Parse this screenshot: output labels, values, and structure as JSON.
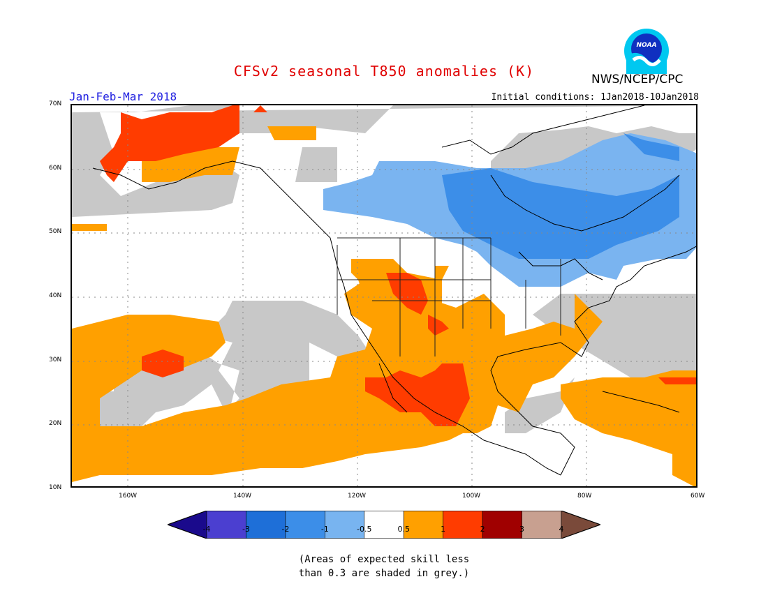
{
  "title": "CFSv2 seasonal T850 anomalies (K)",
  "period": "Jan-Feb-Mar 2018",
  "initial_conditions": "Initial conditions: 1Jan2018-10Jan2018",
  "agency": "NWS/NCEP/CPC",
  "logo_text": "NOAA",
  "lat_labels": [
    "70N",
    "60N",
    "50N",
    "40N",
    "30N",
    "20N",
    "10N"
  ],
  "lon_labels": [
    "160W",
    "140W",
    "120W",
    "100W",
    "80W",
    "60W"
  ],
  "colorbar": {
    "labels": [
      "-4",
      "-3",
      "-2",
      "-1",
      "-0.5",
      "0.5",
      "1",
      "2",
      "3",
      "4"
    ],
    "colors": [
      "#1a0a8c",
      "#4b3fd0",
      "#1e6fd8",
      "#3c8ee8",
      "#78b4f0",
      "#ffffff",
      "#ffa000",
      "#ff3c00",
      "#a00000",
      "#c8a090",
      "#7a4a3a"
    ]
  },
  "colors": {
    "grey_skill": "#c8c8c8",
    "light_blue": "#7ab4f0",
    "blue": "#3c8ee8",
    "orange": "#ffa000",
    "red_orange": "#ff3c00"
  },
  "note_lines": [
    "(Areas of expected skill less",
    "than 0.3 are shaded in grey.)"
  ]
}
